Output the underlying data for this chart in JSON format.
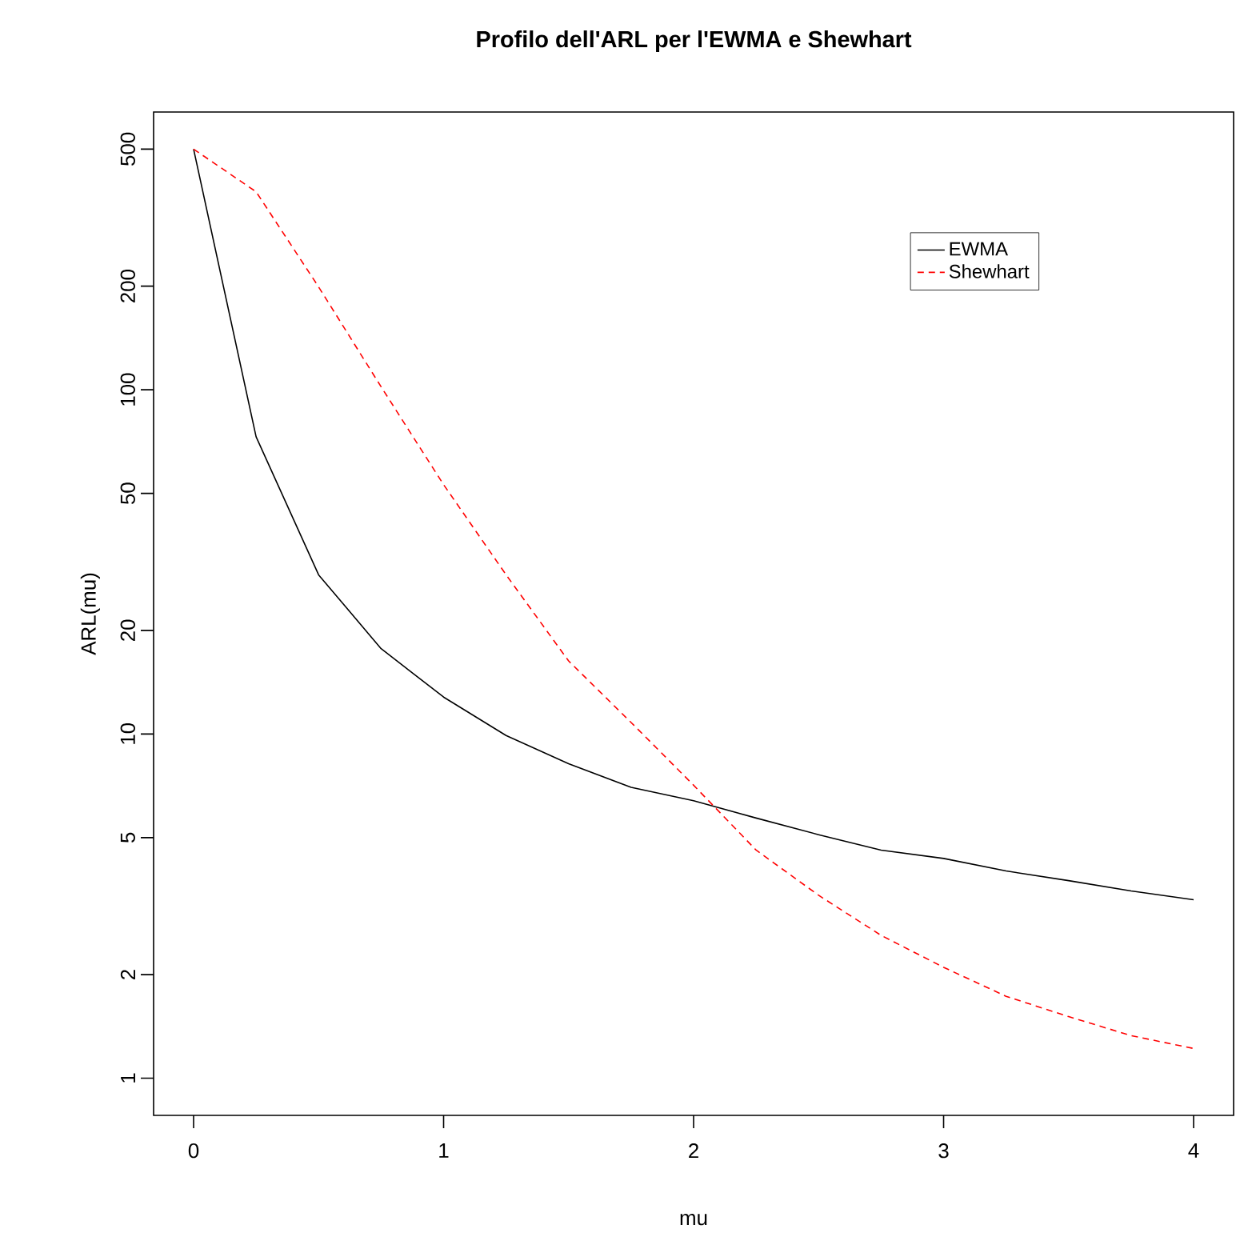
{
  "chart_data": {
    "type": "line",
    "title": "Profilo dell'ARL per l'EWMA e Shewhart",
    "xlabel": "mu",
    "ylabel": "ARL(mu)",
    "x": [
      0,
      0.25,
      0.5,
      0.75,
      1,
      1.25,
      1.5,
      1.75,
      2,
      2.25,
      2.5,
      2.75,
      3,
      3.25,
      3.5,
      3.75,
      4
    ],
    "series": [
      {
        "name": "EWMA",
        "color": "#000000",
        "line_style": "solid",
        "values": [
          500,
          73,
          29,
          17.7,
          12.8,
          9.9,
          8.2,
          7.0,
          6.4,
          5.7,
          5.1,
          4.6,
          4.35,
          4.0,
          3.75,
          3.5,
          3.3
        ]
      },
      {
        "name": "Shewhart",
        "color": "#ff0000",
        "line_style": "dashed",
        "values": [
          500,
          376,
          199,
          102,
          53,
          29,
          16.3,
          10.8,
          7.1,
          4.6,
          3.4,
          2.6,
          2.1,
          1.73,
          1.51,
          1.33,
          1.22
        ]
      }
    ],
    "log": "y",
    "xlim": [
      -0.16,
      4.16
    ],
    "ylim": [
      0.78,
      641
    ],
    "xticks": [
      0,
      1,
      2,
      3,
      4
    ],
    "yticks": [
      1,
      2,
      5,
      10,
      20,
      50,
      100,
      200,
      500
    ],
    "legend": "top right",
    "grid": false,
    "marker": "none"
  }
}
